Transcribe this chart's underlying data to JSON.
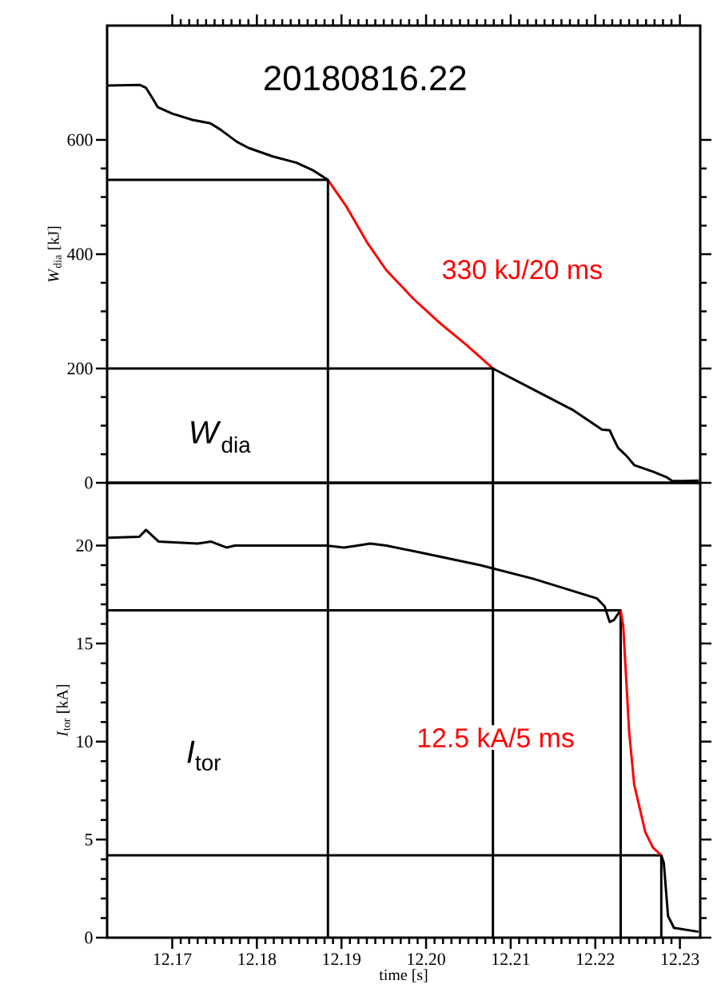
{
  "chart_data": [
    {
      "type": "line",
      "title": "20180816.22",
      "ylabel": "*W*$_{dia}$ [kJ]",
      "annotations": [
        "*W*$_{dia}$",
        "330 kJ/20 ms"
      ],
      "tick_labels": "y",
      "xlim": [
        12.1623,
        12.2324
      ],
      "ylim": [
        0,
        800
      ],
      "xticks": [
        {
          "value": 12.17,
          "label": null
        },
        {
          "value": 12.18,
          "label": null
        },
        {
          "value": 12.19,
          "label": null
        },
        {
          "value": 12.2,
          "label": null
        },
        {
          "value": 12.21,
          "label": null
        },
        {
          "value": 12.22,
          "label": null
        },
        {
          "value": 12.23,
          "label": null
        }
      ],
      "yticks": [
        0,
        200,
        400,
        600
      ],
      "series": [
        {
          "color": "#000000",
          "x": [
            12.1623,
            12.1662,
            12.1669,
            12.1677,
            12.1683,
            12.17,
            12.1724,
            12.1745,
            12.1757,
            12.1776,
            12.179,
            12.1819,
            12.1847,
            12.1866,
            12.1884
          ],
          "values": [
            695,
            696,
            691,
            672,
            657,
            646,
            635,
            629,
            618,
            597,
            586,
            571,
            560,
            547,
            530
          ]
        },
        {
          "color": "#ff0000",
          "x": [
            12.1884,
            12.1906,
            12.1931,
            12.1953,
            12.1985,
            12.2016,
            12.2047,
            12.2079
          ],
          "values": [
            530,
            483,
            419,
            372,
            322,
            280,
            242,
            200
          ]
        },
        {
          "color": "#000000",
          "x": [
            12.2079,
            12.2127,
            12.2174,
            12.2208,
            12.2217,
            12.2221,
            12.2227,
            12.2237,
            12.2246,
            12.2269,
            12.2284,
            12.2291,
            12.2303,
            12.2322
          ],
          "values": [
            200,
            163,
            127,
            93,
            92,
            79,
            61,
            47,
            31,
            19,
            10,
            3,
            3,
            4
          ]
        },
        {
          "color": "#000000",
          "x": [
            12.1623,
            12.1884,
            12.1884
          ],
          "values": [
            530,
            530,
            0
          ]
        },
        {
          "color": "#000000",
          "x": [
            12.1623,
            12.2079,
            12.2079
          ],
          "values": [
            200,
            200,
            0
          ]
        }
      ]
    },
    {
      "type": "line",
      "xlabel": "time [s]",
      "ylabel": "*I*$_{tor}$ [kA]",
      "annotations": [
        "*I*$_{tor}$",
        "12.5 kA/5 ms"
      ],
      "xlim": [
        12.1623,
        12.2324
      ],
      "ylim": [
        0,
        23.2
      ],
      "xticks": [
        12.17,
        12.18,
        12.19,
        {
          "value": 12.2,
          "label": "12.20"
        },
        12.21,
        12.22,
        12.23
      ],
      "yticks": [
        0,
        5,
        10,
        15,
        20
      ],
      "series": [
        {
          "color": "#000000",
          "x": [
            12.1884,
            12.1884
          ],
          "values": [
            23.2,
            0
          ]
        },
        {
          "color": "#000000",
          "x": [
            12.2079,
            12.2079
          ],
          "values": [
            23.2,
            0
          ]
        },
        {
          "color": "#000000",
          "x": [
            12.1623,
            12.223,
            12.223
          ],
          "values": [
            16.7,
            16.7,
            0
          ]
        },
        {
          "color": "#000000",
          "x": [
            12.1623,
            12.2278,
            12.2278
          ],
          "values": [
            4.2,
            4.2,
            0
          ]
        },
        {
          "color": "#000000",
          "x": [
            12.1623,
            12.1661,
            12.1669,
            12.1684,
            12.173,
            12.1746,
            12.1764,
            12.1774,
            12.1783,
            12.1882,
            12.1903,
            12.1919,
            12.1934,
            12.1953,
            12.1998,
            12.2064,
            12.2127,
            12.2202,
            12.2211,
            12.2217,
            12.2222,
            12.223
          ],
          "values": [
            20.4,
            20.45,
            20.8,
            20.2,
            20.1,
            20.2,
            19.9,
            20.0,
            20.0,
            20.0,
            19.9,
            20.0,
            20.1,
            20.0,
            19.6,
            19.0,
            18.3,
            17.3,
            16.9,
            16.1,
            16.2,
            16.7
          ]
        },
        {
          "color": "#ff0000",
          "x": [
            12.223,
            12.2233,
            12.224,
            12.2246,
            12.2259,
            12.2268,
            12.2278
          ],
          "values": [
            16.7,
            15.9,
            10.5,
            7.8,
            5.4,
            4.6,
            4.2
          ]
        },
        {
          "color": "#000000",
          "x": [
            12.2278,
            12.2281,
            12.2286,
            12.2293,
            12.2322
          ],
          "values": [
            4.2,
            3.8,
            1.1,
            0.5,
            0.3
          ]
        }
      ]
    }
  ]
}
